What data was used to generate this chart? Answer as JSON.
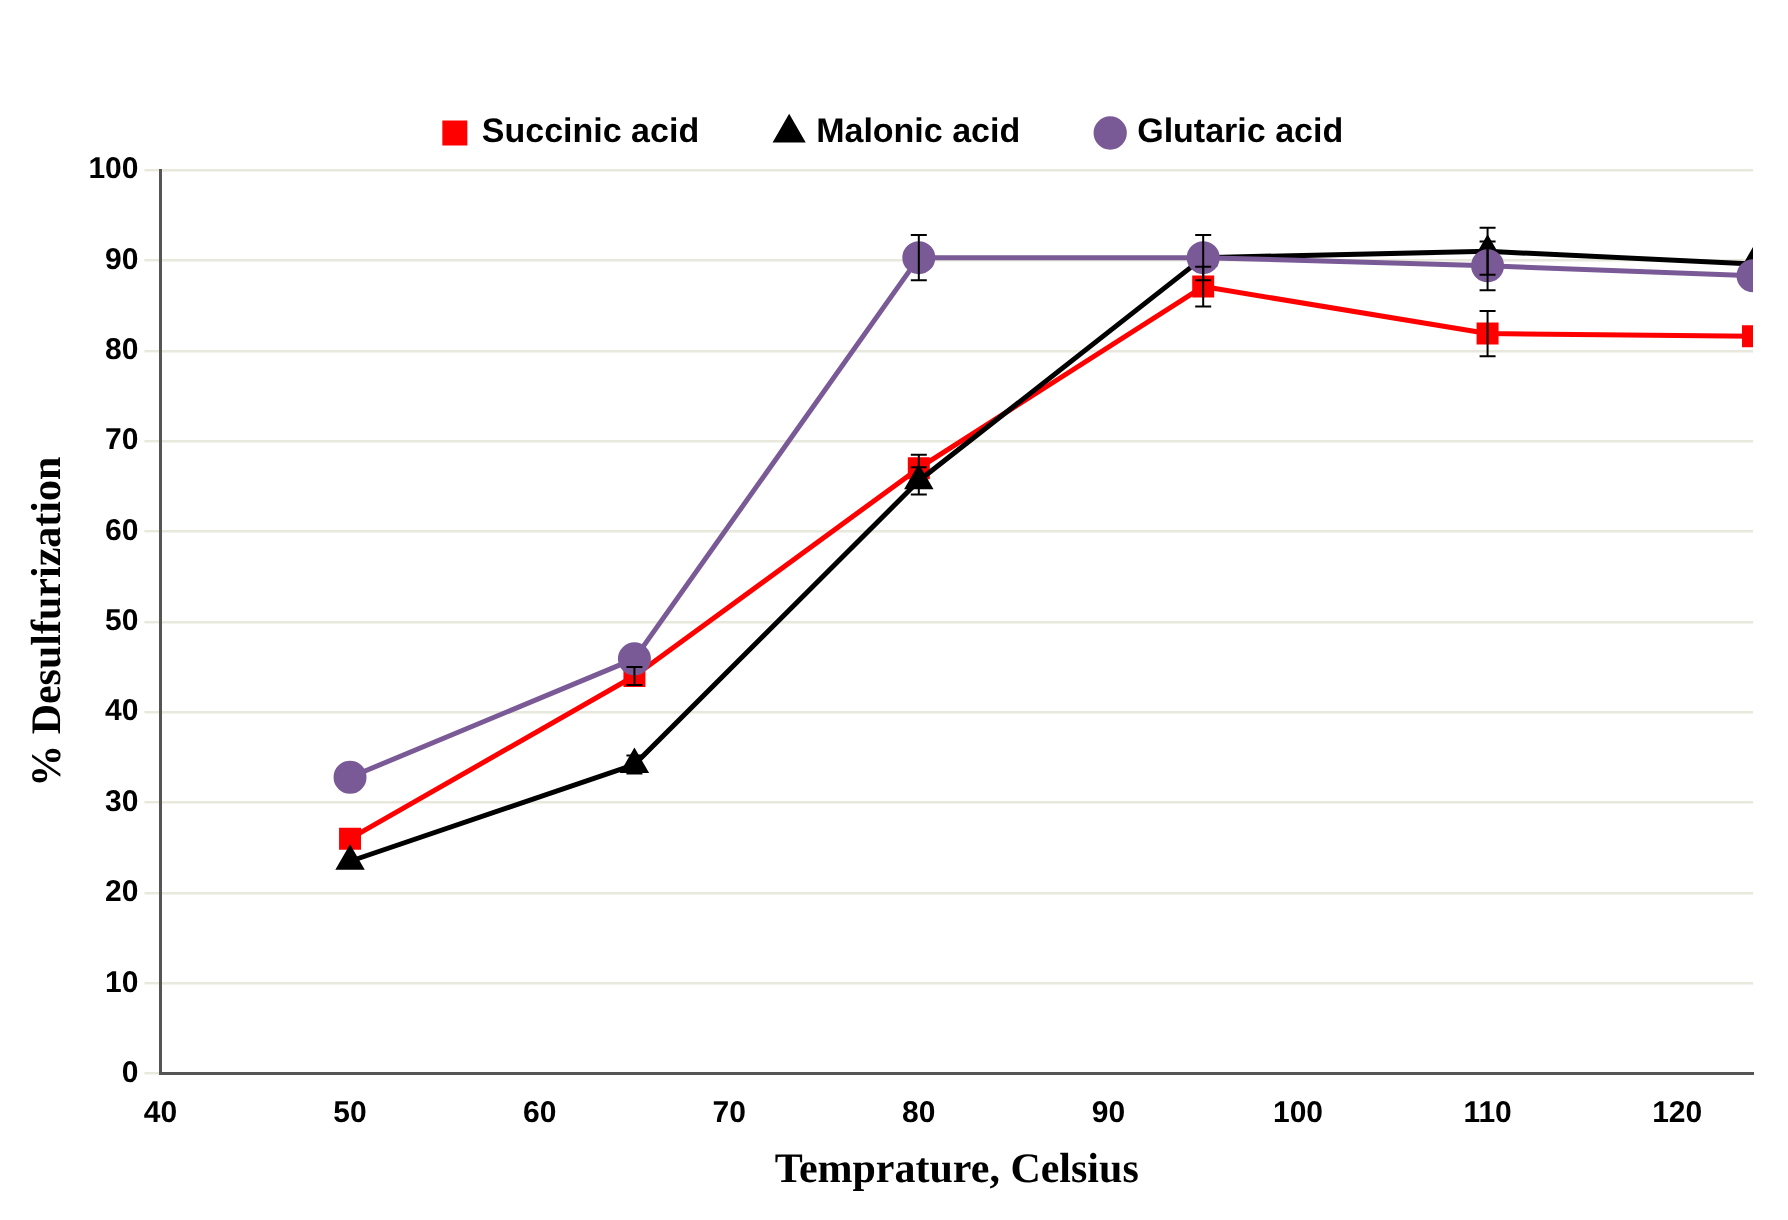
{
  "chart_data": {
    "type": "line",
    "xlabel": "Temprature, Celsius",
    "ylabel": "% Desulfurization",
    "xlim": [
      40,
      124
    ],
    "xticks": [
      40,
      50,
      60,
      70,
      80,
      90,
      100,
      110,
      120
    ],
    "ylim": [
      0,
      100
    ],
    "yticks": [
      0,
      10,
      20,
      30,
      40,
      50,
      60,
      70,
      80,
      90,
      100
    ],
    "grid": "y",
    "legend": "top",
    "series": [
      {
        "name": "Succinic acid",
        "color": "#ff0000",
        "marker": "square",
        "x": [
          50,
          65,
          80,
          95,
          110,
          124
        ],
        "values": [
          26,
          44,
          67,
          87.1,
          81.9,
          81.6
        ],
        "errors": [
          null,
          1,
          1.5,
          2.2,
          2.5,
          null
        ]
      },
      {
        "name": "Malonic acid",
        "color": "#000000",
        "marker": "triangle",
        "x": [
          50,
          65,
          80,
          95,
          110,
          124
        ],
        "values": [
          23.5,
          34.2,
          65.6,
          90.3,
          91,
          89.6
        ],
        "errors": [
          null,
          1,
          1.5,
          null,
          2.6,
          null
        ]
      },
      {
        "name": "Glutaric acid",
        "color": "#7a5a96",
        "marker": "circle",
        "x": [
          50,
          65,
          80,
          95,
          110,
          124
        ],
        "values": [
          32.8,
          45.9,
          90.3,
          90.3,
          89.4,
          88.3
        ],
        "errors": [
          null,
          null,
          2.5,
          2.5,
          2.7,
          null
        ]
      }
    ]
  }
}
